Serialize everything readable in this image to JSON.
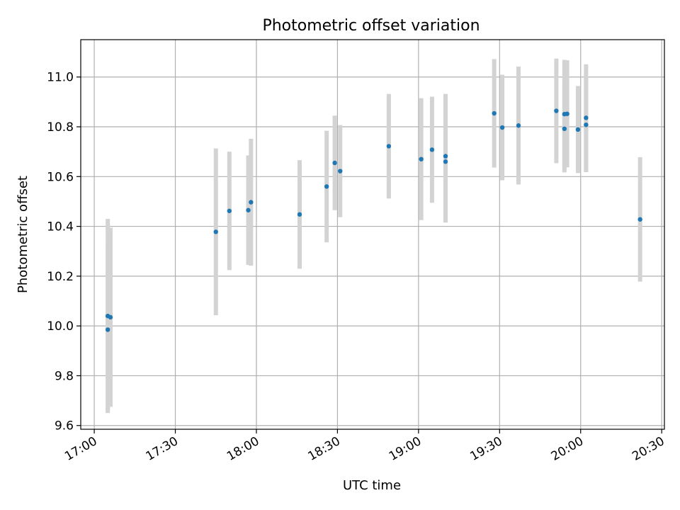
{
  "chart_data": {
    "type": "scatter",
    "title": "Photometric offset variation",
    "xlabel": "UTC time",
    "ylabel": "Photometric offset",
    "xlim": [
      "16:55",
      "20:31"
    ],
    "ylim": [
      9.585,
      11.15
    ],
    "xticks": [
      "17:00",
      "17:30",
      "18:00",
      "18:30",
      "19:00",
      "19:30",
      "20:00",
      "20:30"
    ],
    "yticks": [
      "9.6",
      "9.8",
      "10.0",
      "10.2",
      "10.4",
      "10.6",
      "10.8",
      "11.0"
    ],
    "grid": true,
    "marker_color": "#1f77b4",
    "errorbar_color": "#d3d3d3",
    "series": [
      {
        "points": [
          {
            "x": "17:05",
            "y": 10.04,
            "err": 0.39
          },
          {
            "x": "17:05",
            "y": 9.985,
            "err": 0.33
          },
          {
            "x": "17:06",
            "y": 10.035,
            "err": 0.36
          },
          {
            "x": "17:45",
            "y": 10.378,
            "err": 0.335
          },
          {
            "x": "17:50",
            "y": 10.462,
            "err": 0.238
          },
          {
            "x": "17:57",
            "y": 10.465,
            "err": 0.22
          },
          {
            "x": "17:58",
            "y": 10.497,
            "err": 0.255
          },
          {
            "x": "18:16",
            "y": 10.448,
            "err": 0.218
          },
          {
            "x": "18:26",
            "y": 10.56,
            "err": 0.224
          },
          {
            "x": "18:29",
            "y": 10.655,
            "err": 0.19
          },
          {
            "x": "18:31",
            "y": 10.622,
            "err": 0.185
          },
          {
            "x": "18:49",
            "y": 10.722,
            "err": 0.21
          },
          {
            "x": "19:01",
            "y": 10.67,
            "err": 0.245
          },
          {
            "x": "19:05",
            "y": 10.708,
            "err": 0.213
          },
          {
            "x": "19:10",
            "y": 10.682,
            "err": 0.25
          },
          {
            "x": "19:10",
            "y": 10.66,
            "err": 0.245
          },
          {
            "x": "19:28",
            "y": 10.854,
            "err": 0.218
          },
          {
            "x": "19:31",
            "y": 10.797,
            "err": 0.212
          },
          {
            "x": "19:37",
            "y": 10.805,
            "err": 0.237
          },
          {
            "x": "19:51",
            "y": 10.864,
            "err": 0.21
          },
          {
            "x": "19:54",
            "y": 10.851,
            "err": 0.218
          },
          {
            "x": "19:54",
            "y": 10.792,
            "err": 0.175
          },
          {
            "x": "19:55",
            "y": 10.852,
            "err": 0.215
          },
          {
            "x": "19:59",
            "y": 10.789,
            "err": 0.175
          },
          {
            "x": "20:02",
            "y": 10.836,
            "err": 0.215
          },
          {
            "x": "20:02",
            "y": 10.808,
            "err": 0.19
          },
          {
            "x": "20:22",
            "y": 10.428,
            "err": 0.25
          }
        ]
      }
    ]
  }
}
